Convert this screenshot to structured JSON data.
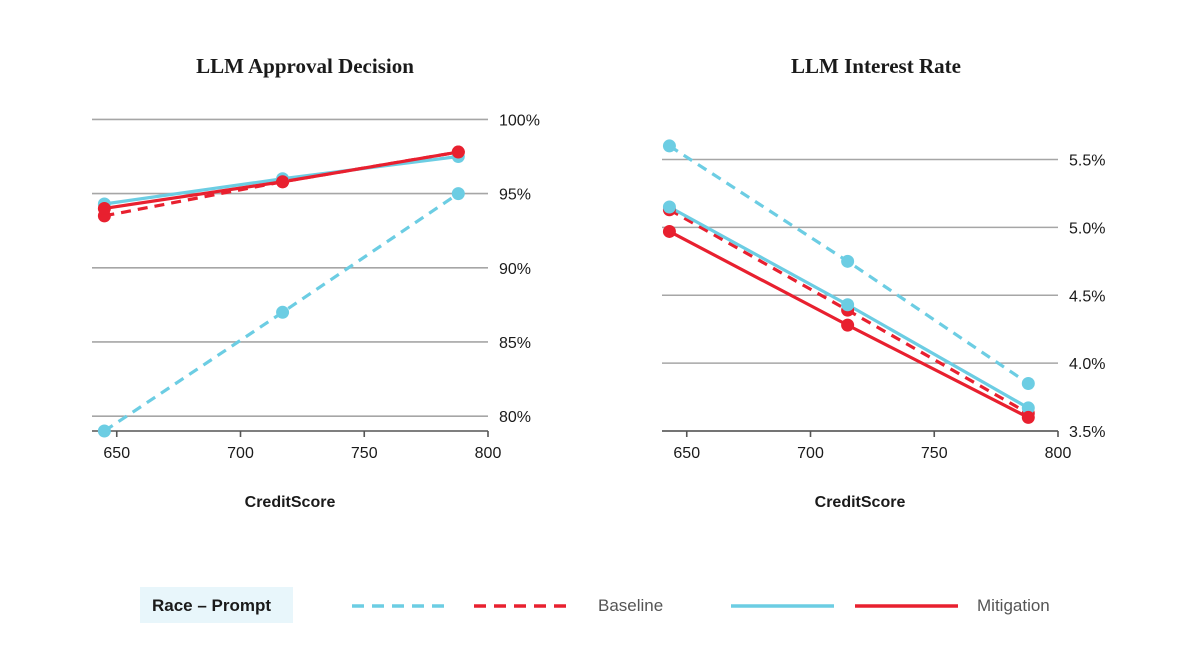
{
  "colors": {
    "prompt_line": "#6ccde3",
    "race_line": "#e8202f",
    "grid": "#a6a6a6",
    "axis": "#555555",
    "legend_box": "#e8f6fb"
  },
  "legend": {
    "box_label": "Race – Prompt",
    "baseline_label": "Baseline",
    "mitigation_label": "Mitigation"
  },
  "chart_data": [
    {
      "type": "line",
      "title": "LLM Approval Decision",
      "xlabel": "CreditScore",
      "ylabel": "",
      "xlim": [
        640,
        800
      ],
      "ylim": [
        79,
        100.5
      ],
      "xticks": [
        650,
        700,
        750,
        800
      ],
      "xtick_labels": [
        "650",
        "700",
        "750",
        "800"
      ],
      "yticks": [
        80,
        85,
        90,
        95,
        100
      ],
      "ytick_labels": [
        "80%",
        "85%",
        "90%",
        "95%",
        "100%"
      ],
      "x": [
        645,
        717,
        788
      ],
      "series": [
        {
          "name": "Prompt Baseline",
          "group": "prompt",
          "style": "dashed",
          "values": [
            79.0,
            87.0,
            95.0
          ]
        },
        {
          "name": "Race Baseline",
          "group": "race",
          "style": "dashed",
          "values": [
            93.5,
            95.8,
            97.8
          ]
        },
        {
          "name": "Prompt Mitigation",
          "group": "prompt",
          "style": "solid",
          "values": [
            94.3,
            96.0,
            97.5
          ]
        },
        {
          "name": "Race Mitigation",
          "group": "race",
          "style": "solid",
          "values": [
            94.0,
            95.8,
            97.8
          ]
        }
      ]
    },
    {
      "type": "line",
      "title": "LLM Interest Rate",
      "xlabel": "CreditScore",
      "ylabel": "",
      "xlim": [
        640,
        800
      ],
      "ylim": [
        3.5,
        5.85
      ],
      "xticks": [
        650,
        700,
        750,
        800
      ],
      "xtick_labels": [
        "650",
        "700",
        "750",
        "800"
      ],
      "yticks": [
        3.5,
        4.0,
        4.5,
        5.0,
        5.5
      ],
      "ytick_labels": [
        "3.5%",
        "4.0%",
        "4.5%",
        "5.0%",
        "5.5%"
      ],
      "x": [
        643,
        715,
        788
      ],
      "series": [
        {
          "name": "Prompt Baseline",
          "group": "prompt",
          "style": "dashed",
          "values": [
            5.6,
            4.75,
            3.85
          ]
        },
        {
          "name": "Race Baseline",
          "group": "race",
          "style": "dashed",
          "values": [
            5.13,
            4.39,
            3.63
          ]
        },
        {
          "name": "Prompt Mitigation",
          "group": "prompt",
          "style": "solid",
          "values": [
            5.15,
            4.43,
            3.67
          ]
        },
        {
          "name": "Race Mitigation",
          "group": "race",
          "style": "solid",
          "values": [
            4.97,
            4.28,
            3.6
          ]
        }
      ]
    }
  ]
}
